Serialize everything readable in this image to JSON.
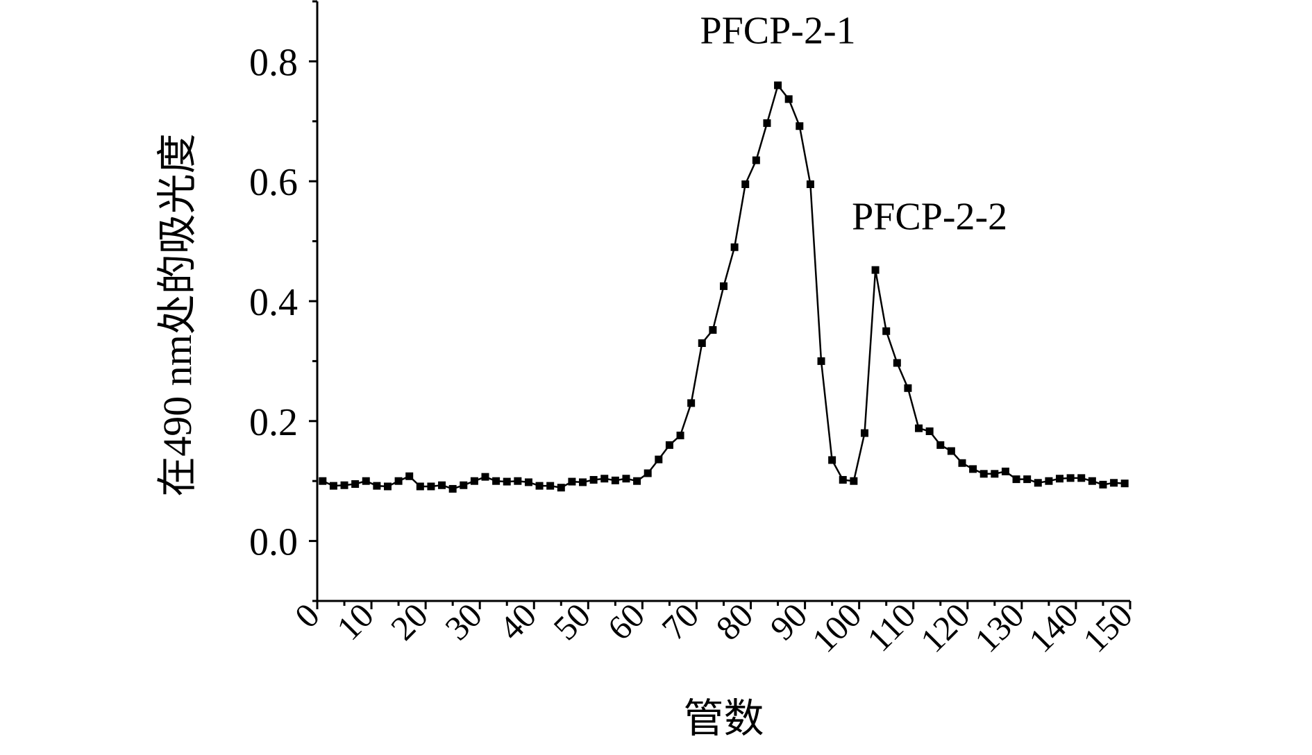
{
  "chart_data": {
    "type": "line",
    "title": "",
    "xlabel": "管数",
    "ylabel": "在490 nm处的吸光度",
    "xlim": [
      0,
      150
    ],
    "ylim": [
      -0.1,
      0.9
    ],
    "x_ticks": [
      0,
      10,
      20,
      30,
      40,
      50,
      60,
      70,
      80,
      90,
      100,
      110,
      120,
      130,
      140,
      150
    ],
    "x_tick_labels": [
      "0",
      "10",
      "20",
      "30",
      "40",
      "50",
      "60",
      "70",
      "80",
      "90",
      "100",
      "110",
      "120",
      "130",
      "140",
      "150"
    ],
    "y_ticks": [
      0.0,
      0.2,
      0.4,
      0.6,
      0.8
    ],
    "y_tick_labels": [
      "0.0",
      "0.2",
      "0.4",
      "0.6",
      "0.8"
    ],
    "grid": false,
    "legend": "none",
    "marker": "square",
    "color": "#000000",
    "annotations": [
      {
        "text": "PFCP-2-1",
        "x": 85,
        "y": 0.83
      },
      {
        "text": "PFCP-2-2",
        "x": 113,
        "y": 0.52
      }
    ],
    "series": [
      {
        "x": [
          1,
          3,
          5,
          7,
          9,
          11,
          13,
          15,
          17,
          19,
          21,
          23,
          25,
          27,
          29,
          31,
          33,
          35,
          37,
          39,
          41,
          43,
          45,
          47,
          49,
          51,
          53,
          55,
          57,
          59,
          61,
          63,
          65,
          67,
          69,
          71,
          73,
          75,
          77,
          79,
          81,
          83,
          85,
          87,
          89,
          91,
          93,
          95,
          97,
          99,
          101,
          103,
          105,
          107,
          109,
          111,
          113,
          115,
          117,
          119,
          121,
          123,
          125,
          127,
          129,
          131,
          133,
          135,
          137,
          139,
          141,
          143,
          145,
          147,
          149
        ],
        "y": [
          0.1,
          0.092,
          0.093,
          0.095,
          0.1,
          0.092,
          0.091,
          0.1,
          0.108,
          0.091,
          0.091,
          0.093,
          0.087,
          0.093,
          0.1,
          0.107,
          0.1,
          0.099,
          0.1,
          0.098,
          0.092,
          0.092,
          0.089,
          0.099,
          0.098,
          0.102,
          0.104,
          0.101,
          0.104,
          0.1,
          0.113,
          0.136,
          0.16,
          0.176,
          0.23,
          0.33,
          0.352,
          0.425,
          0.49,
          0.595,
          0.635,
          0.697,
          0.76,
          0.737,
          0.692,
          0.595,
          0.3,
          0.135,
          0.102,
          0.1,
          0.18,
          0.452,
          0.35,
          0.297,
          0.255,
          0.188,
          0.183,
          0.16,
          0.15,
          0.13,
          0.12,
          0.112,
          0.112,
          0.116,
          0.103,
          0.103,
          0.097,
          0.1,
          0.104,
          0.105,
          0.105,
          0.1,
          0.094,
          0.097,
          0.096
        ]
      }
    ]
  }
}
